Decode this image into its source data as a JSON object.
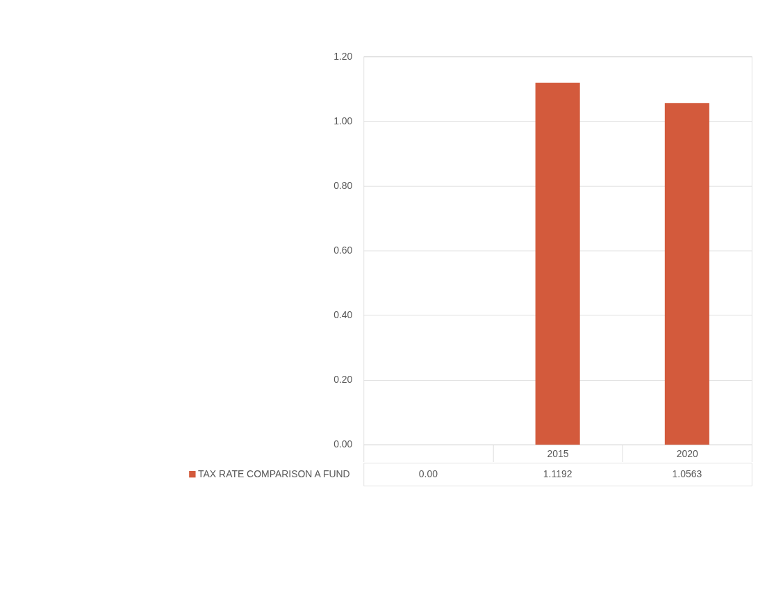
{
  "chart_data": {
    "type": "bar",
    "categories": [
      null,
      "2015",
      "2020"
    ],
    "series": [
      {
        "name": "TAX RATE COMPARISON A FUND",
        "color": "#d35a3c",
        "values": [
          0,
          1.1192,
          1.0563
        ]
      }
    ],
    "value_labels": [
      "0.00",
      "1.1192",
      "1.0563"
    ],
    "ylim": [
      0,
      1.2
    ],
    "yticks": [
      {
        "value": 0,
        "label": "0.00"
      },
      {
        "value": 0.2,
        "label": "0.20"
      },
      {
        "value": 0.4,
        "label": "0.40"
      },
      {
        "value": 0.6,
        "label": "0.60"
      },
      {
        "value": 0.8,
        "label": "0.80"
      },
      {
        "value": 1.0,
        "label": "1.00"
      },
      {
        "value": 1.2,
        "label": "1.20"
      }
    ],
    "grid": "y",
    "legend": "bottom"
  }
}
